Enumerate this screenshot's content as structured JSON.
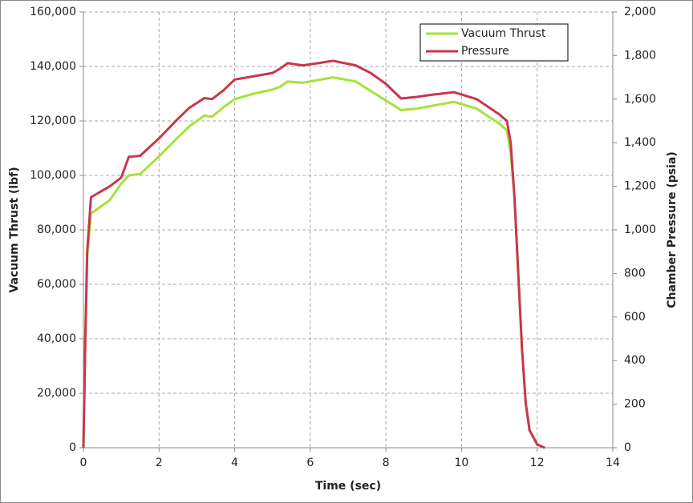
{
  "chart_data": {
    "type": "line",
    "xlabel": "Time (sec)",
    "ylabel": "Vacuum Thrust (lbf)",
    "y2label": "Chamber Pressure (psia)",
    "x": [
      0,
      0.05,
      0.1,
      0.2,
      0.4,
      0.7,
      1.0,
      1.2,
      1.5,
      2.0,
      2.5,
      2.8,
      3.2,
      3.4,
      3.7,
      4.0,
      4.5,
      5.0,
      5.2,
      5.4,
      5.8,
      6.2,
      6.6,
      7.2,
      7.6,
      8.0,
      8.4,
      8.8,
      9.2,
      9.8,
      10.4,
      11.0,
      11.2,
      11.3,
      11.4,
      11.5,
      11.6,
      11.7,
      11.8,
      12.0,
      12.2
    ],
    "series": [
      {
        "name": "Vacuum Thrust",
        "color": "#a6e23a",
        "axis": "y",
        "values": [
          0,
          40000,
          70000,
          86000,
          88000,
          91000,
          97000,
          100000,
          100500,
          107000,
          114000,
          118000,
          122000,
          121500,
          125000,
          128000,
          130000,
          131500,
          132500,
          134500,
          134000,
          135000,
          136000,
          134500,
          131000,
          127500,
          124000,
          124500,
          125500,
          127000,
          124500,
          119000,
          116500,
          108000,
          92000,
          64000,
          36000,
          16000,
          6400,
          1200,
          0
        ]
      },
      {
        "name": "Pressure",
        "color": "#c8374f",
        "axis": "y2",
        "values": [
          0,
          500,
          900,
          1150,
          1170,
          1200,
          1240,
          1335,
          1340,
          1420,
          1510,
          1560,
          1605,
          1600,
          1640,
          1690,
          1705,
          1720,
          1740,
          1765,
          1755,
          1765,
          1776,
          1755,
          1720,
          1670,
          1603,
          1610,
          1620,
          1632,
          1600,
          1530,
          1500,
          1400,
          1150,
          800,
          450,
          200,
          80,
          15,
          0
        ]
      }
    ],
    "xlim": [
      0,
      14
    ],
    "xticks": [
      0,
      2,
      4,
      6,
      8,
      10,
      12,
      14
    ],
    "ylim": [
      0,
      160000
    ],
    "yticks": [
      0,
      {
        "value": 20000,
        "label": "20,000"
      },
      {
        "value": 40000,
        "label": "40,000"
      },
      {
        "value": 60000,
        "label": "60,000"
      },
      {
        "value": 80000,
        "label": "80,000"
      },
      {
        "value": 100000,
        "label": "100,000"
      },
      {
        "value": 120000,
        "label": "120,000"
      },
      {
        "value": 140000,
        "label": "140,000"
      },
      {
        "value": 160000,
        "label": "160,000"
      }
    ],
    "y2lim": [
      0,
      2000
    ],
    "y2ticks": [
      0,
      200,
      400,
      600,
      800,
      {
        "value": 1000,
        "label": "1,000"
      },
      {
        "value": 1200,
        "label": "1,200"
      },
      {
        "value": 1400,
        "label": "1,400"
      },
      {
        "value": 1600,
        "label": "1,600"
      },
      {
        "value": 1800,
        "label": "1,800"
      },
      {
        "value": 2000,
        "label": "2,000"
      }
    ],
    "grid": true,
    "legend": "upper right"
  }
}
